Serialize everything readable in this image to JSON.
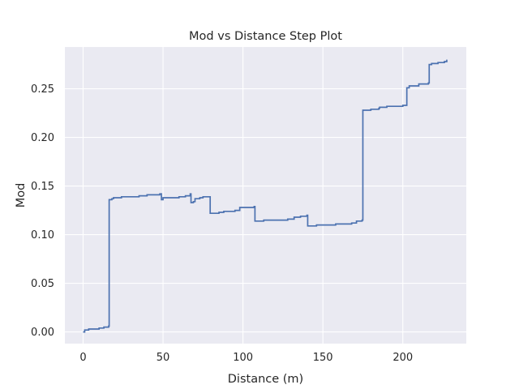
{
  "chart_data": {
    "type": "line",
    "subtype": "step",
    "title": "Mod vs Distance Step Plot",
    "xlabel": "Distance (m)",
    "ylabel": "Mod",
    "xlim": [
      -11.4,
      239.7
    ],
    "ylim": [
      -0.012,
      0.293
    ],
    "xticks": [
      0,
      50,
      100,
      150,
      200
    ],
    "yticks": [
      0.0,
      0.05,
      0.1,
      0.15,
      0.2,
      0.25
    ],
    "xtick_labels": [
      "0",
      "50",
      "100",
      "150",
      "200"
    ],
    "ytick_labels": [
      "0.00",
      "0.05",
      "0.10",
      "0.15",
      "0.20",
      "0.25"
    ],
    "grid": true,
    "background": "#eaeaf2",
    "grid_color": "#ffffff",
    "series": [
      {
        "color": "#4c72b0",
        "points": [
          [
            0,
            0.0
          ],
          [
            1,
            0.002
          ],
          [
            3,
            0.002
          ],
          [
            3.5,
            0.003
          ],
          [
            8,
            0.003
          ],
          [
            10,
            0.004
          ],
          [
            13,
            0.005
          ],
          [
            16,
            0.006
          ],
          [
            16.3,
            0.136
          ],
          [
            18,
            0.137
          ],
          [
            19,
            0.138
          ],
          [
            24,
            0.139
          ],
          [
            30,
            0.139
          ],
          [
            35,
            0.14
          ],
          [
            40,
            0.141
          ],
          [
            46,
            0.141
          ],
          [
            48,
            0.142
          ],
          [
            49,
            0.136
          ],
          [
            50,
            0.138
          ],
          [
            55,
            0.138
          ],
          [
            60,
            0.139
          ],
          [
            64,
            0.14
          ],
          [
            67,
            0.142
          ],
          [
            67.5,
            0.133
          ],
          [
            69,
            0.134
          ],
          [
            70,
            0.137
          ],
          [
            73,
            0.138
          ],
          [
            75,
            0.139
          ],
          [
            79,
            0.139
          ],
          [
            79.5,
            0.122
          ],
          [
            85,
            0.123
          ],
          [
            88,
            0.124
          ],
          [
            92,
            0.124
          ],
          [
            95,
            0.125
          ],
          [
            98,
            0.128
          ],
          [
            102,
            0.128
          ],
          [
            107,
            0.129
          ],
          [
            107.5,
            0.114
          ],
          [
            113,
            0.115
          ],
          [
            120,
            0.115
          ],
          [
            128,
            0.116
          ],
          [
            132,
            0.118
          ],
          [
            136,
            0.119
          ],
          [
            140,
            0.12
          ],
          [
            140.5,
            0.109
          ],
          [
            146,
            0.11
          ],
          [
            152,
            0.11
          ],
          [
            158,
            0.111
          ],
          [
            163,
            0.111
          ],
          [
            168,
            0.112
          ],
          [
            171,
            0.114
          ],
          [
            174.5,
            0.115
          ],
          [
            175,
            0.228
          ],
          [
            180,
            0.229
          ],
          [
            185,
            0.23
          ],
          [
            185.5,
            0.231
          ],
          [
            190,
            0.232
          ],
          [
            195,
            0.232
          ],
          [
            200,
            0.233
          ],
          [
            202,
            0.233
          ],
          [
            202.5,
            0.251
          ],
          [
            204,
            0.253
          ],
          [
            210,
            0.255
          ],
          [
            216,
            0.256
          ],
          [
            216.5,
            0.275
          ],
          [
            218,
            0.276
          ],
          [
            222,
            0.277
          ],
          [
            226,
            0.278
          ],
          [
            227.5,
            0.28
          ]
        ]
      }
    ]
  }
}
